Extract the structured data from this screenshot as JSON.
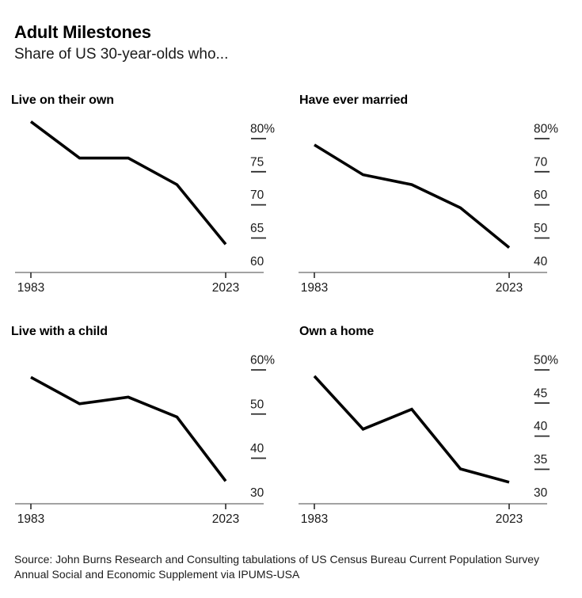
{
  "header": {
    "title": "Adult Milestones",
    "subtitle": "Share of US 30-year-olds who..."
  },
  "colors": {
    "line": "#000000",
    "axis": "#a2a2a2",
    "tick": "#2a2a2a",
    "dash": "#2e2e2e",
    "text": "#1a1a1a",
    "background": "#ffffff"
  },
  "chart_data": [
    {
      "type": "line",
      "title": "Live on their own",
      "x": [
        1983,
        1993,
        2003,
        2013,
        2023
      ],
      "values": [
        81,
        75.5,
        75.5,
        71.5,
        62.5
      ],
      "ytick_labels": [
        "80%",
        "75",
        "70",
        "65",
        "60"
      ],
      "xticks": [
        1983,
        2023
      ],
      "xtick_labels": [
        "1983",
        "2023"
      ],
      "xlim": [
        1983,
        2023
      ],
      "ylim": [
        60,
        80
      ],
      "grid": false,
      "legend": "none"
    },
    {
      "type": "line",
      "title": "Have ever married",
      "x": [
        1983,
        1993,
        2003,
        2013,
        2023
      ],
      "values": [
        75,
        66,
        63,
        56,
        44
      ],
      "ytick_labels": [
        "80%",
        "70",
        "60",
        "50",
        "40"
      ],
      "xticks": [
        1983,
        2023
      ],
      "xtick_labels": [
        "1983",
        "2023"
      ],
      "xlim": [
        1983,
        2023
      ],
      "ylim": [
        40,
        80
      ],
      "grid": false,
      "legend": "none"
    },
    {
      "type": "line",
      "title": "Live with a child",
      "x": [
        1983,
        1993,
        2003,
        2013,
        2023
      ],
      "values": [
        56,
        50,
        51.5,
        47,
        32.5
      ],
      "ytick_labels": [
        "60%",
        "50",
        "40",
        "30"
      ],
      "xticks": [
        1983,
        2023
      ],
      "xtick_labels": [
        "1983",
        "2023"
      ],
      "xlim": [
        1983,
        2023
      ],
      "ylim": [
        30,
        60
      ],
      "grid": false,
      "legend": "none"
    },
    {
      "type": "line",
      "title": "Own a home",
      "x": [
        1983,
        1993,
        2003,
        2013,
        2023
      ],
      "values": [
        47.5,
        39.5,
        42.5,
        33.5,
        31.5
      ],
      "ytick_labels": [
        "50%",
        "45",
        "40",
        "35",
        "30"
      ],
      "xticks": [
        1983,
        2023
      ],
      "xtick_labels": [
        "1983",
        "2023"
      ],
      "xlim": [
        1983,
        2023
      ],
      "ylim": [
        30,
        50
      ],
      "grid": false,
      "legend": "none"
    }
  ],
  "footer": {
    "line1": "Source: John Burns Research and Consulting tabulations of US Census Bureau Current Population Survey",
    "line2": "Annual Social and Economic Supplement via IPUMS-USA"
  }
}
